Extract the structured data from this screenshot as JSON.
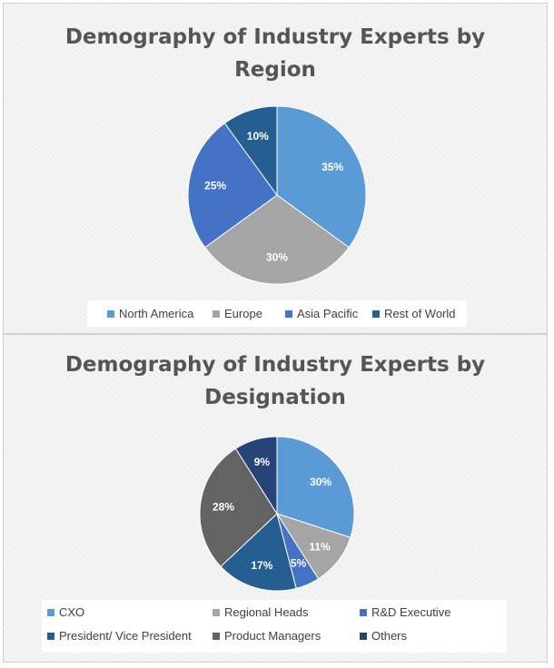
{
  "chart_data": [
    {
      "type": "pie",
      "title": "Demography of Industry Experts by Region",
      "title_lines": [
        "Demography of Industry Experts by",
        "Region"
      ],
      "categories": [
        "North America",
        "Europe",
        "Asia Pacific",
        "Rest of World"
      ],
      "values": [
        35,
        30,
        25,
        10
      ],
      "labels": [
        "35%",
        "30%",
        "25%",
        "10%"
      ],
      "colors": [
        "#5b9bd5",
        "#a5a5a5",
        "#4472c4",
        "#255e91"
      ],
      "legend_position": "bottom"
    },
    {
      "type": "pie",
      "title": "Demography of Industry Experts by Designation",
      "title_lines": [
        "Demography of Industry Experts by",
        "Designation"
      ],
      "categories": [
        "CXO",
        "Regional Heads",
        "R&D Executive",
        "President/ Vice President",
        "Product Managers",
        "Others"
      ],
      "values": [
        30,
        11,
        5,
        17,
        28,
        9
      ],
      "labels": [
        "30%",
        "11%",
        "5%",
        "17%",
        "28%",
        "9%"
      ],
      "colors": [
        "#5b9bd5",
        "#a5a5a5",
        "#4472c4",
        "#255e91",
        "#636363",
        "#264478"
      ],
      "legend_position": "bottom"
    }
  ]
}
